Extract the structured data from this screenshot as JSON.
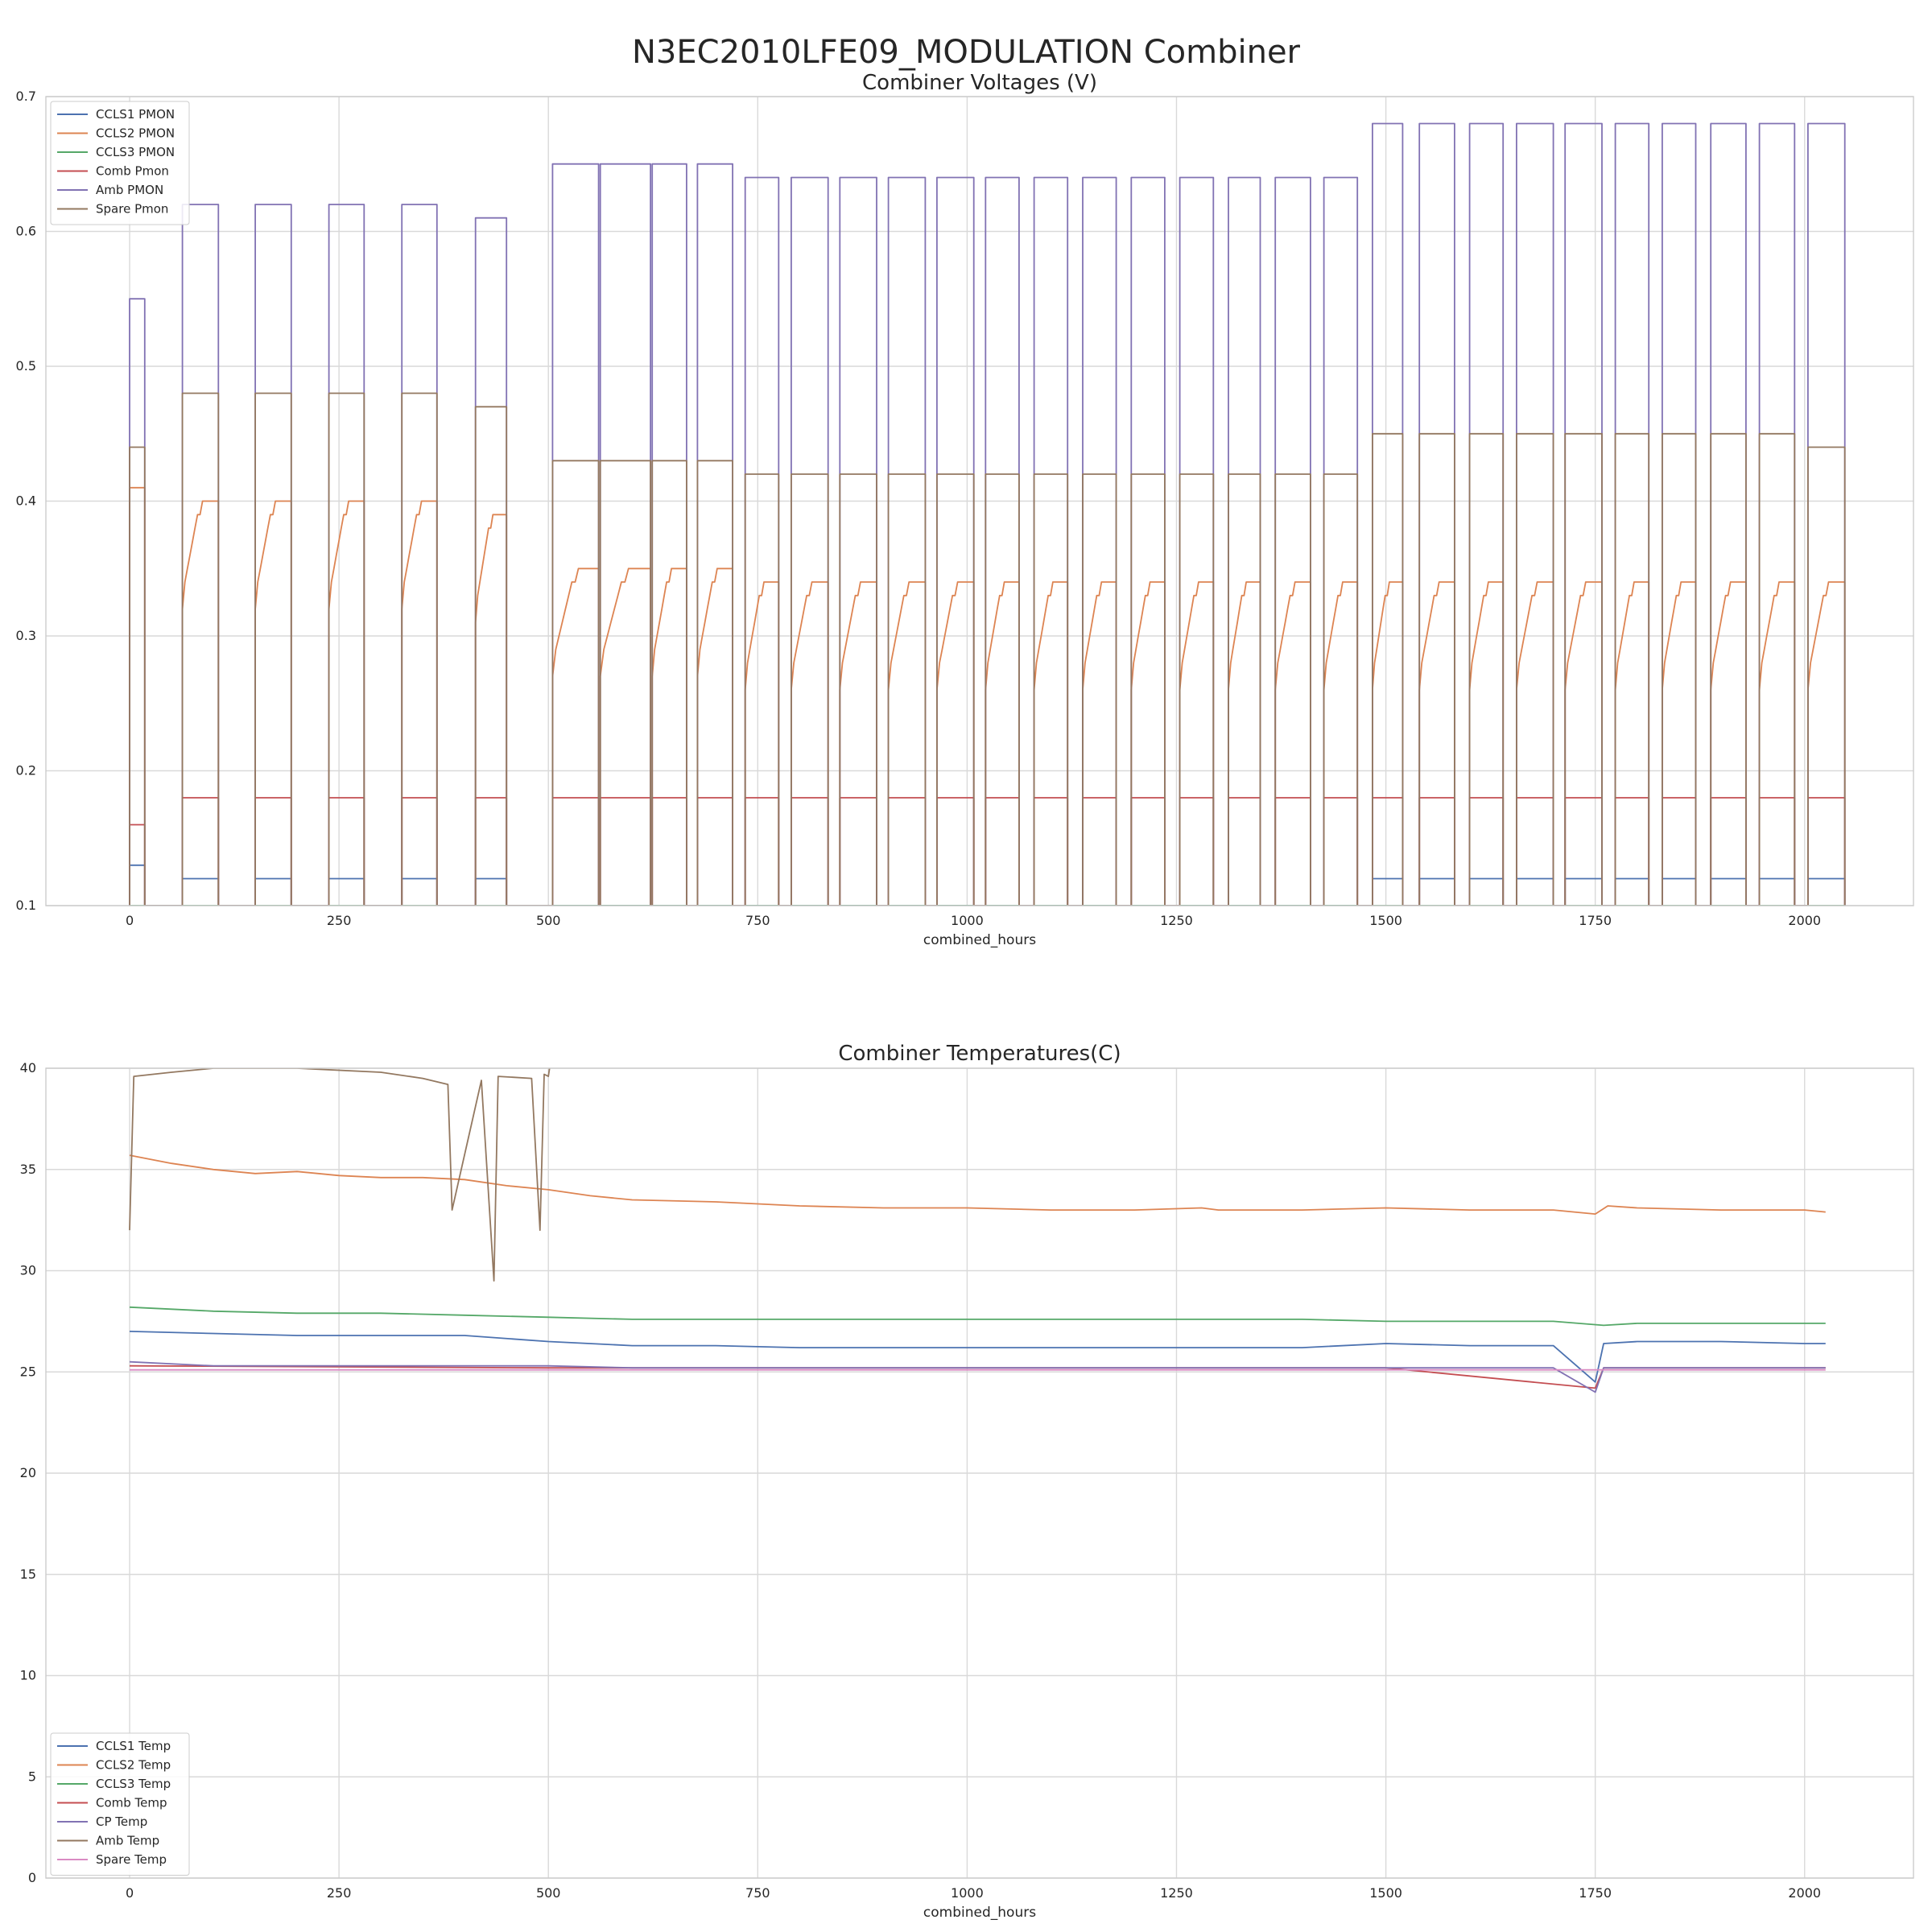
{
  "suptitle": "N3EC2010LFE09_MODULATION Combiner",
  "chart_data": [
    {
      "type": "line",
      "title": "Combiner Voltages (V)",
      "xlabel": "combined_hours",
      "ylabel": "",
      "xlim": [
        -100,
        2130
      ],
      "ylim": [
        0.1,
        0.7
      ],
      "xticks": [
        0,
        250,
        500,
        750,
        1000,
        1250,
        1500,
        1750,
        2000
      ],
      "xtick_labels": [
        "0",
        "250",
        "500",
        "750",
        "1000",
        "1250",
        "1500",
        "1750",
        "2000"
      ],
      "yticks": [
        0.1,
        0.2,
        0.3,
        0.4,
        0.5,
        0.6,
        0.7
      ],
      "ytick_labels": [
        "0.1",
        "0.2",
        "0.3",
        "0.4",
        "0.5",
        "0.6",
        "0.7"
      ],
      "grid": true,
      "legend": "upper-left",
      "on_periods": [
        [
          0,
          18
        ],
        [
          63,
          106
        ],
        [
          150,
          193
        ],
        [
          238,
          280
        ],
        [
          325,
          367
        ],
        [
          413,
          450
        ],
        [
          505,
          560
        ],
        [
          562,
          622
        ],
        [
          624,
          665
        ],
        [
          678,
          720
        ],
        [
          735,
          775
        ],
        [
          790,
          834
        ],
        [
          848,
          892
        ],
        [
          906,
          950
        ],
        [
          964,
          1008
        ],
        [
          1022,
          1062
        ],
        [
          1080,
          1120
        ],
        [
          1138,
          1178
        ],
        [
          1196,
          1236
        ],
        [
          1254,
          1294
        ],
        [
          1312,
          1350
        ],
        [
          1368,
          1410
        ],
        [
          1426,
          1466
        ],
        [
          1484,
          1520
        ],
        [
          1540,
          1582
        ],
        [
          1600,
          1640
        ],
        [
          1656,
          1700
        ],
        [
          1714,
          1758
        ],
        [
          1774,
          1814
        ],
        [
          1830,
          1870
        ],
        [
          1888,
          1930
        ],
        [
          1946,
          1988
        ],
        [
          2004,
          2048
        ]
      ],
      "series": [
        {
          "name": "CCLS1 PMON",
          "color": "#4c72b0",
          "on_values": [
            0.13,
            0.12,
            0.12,
            0.12,
            0.12,
            0.12,
            0.1,
            0.1,
            0.1,
            0.1,
            0.1,
            0.1,
            0.1,
            0.1,
            0.1,
            0.1,
            0.1,
            0.1,
            0.1,
            0.1,
            0.1,
            0.1,
            0.1,
            0.12,
            0.12,
            0.12,
            0.12,
            0.12,
            0.12,
            0.12,
            0.12,
            0.12,
            0.12
          ],
          "off_value": 0.1
        },
        {
          "name": "CCLS2 PMON",
          "color": "#dd8452",
          "on_values": [
            0.41,
            0.4,
            0.4,
            0.4,
            0.4,
            0.39,
            0.35,
            0.35,
            0.35,
            0.35,
            0.34,
            0.34,
            0.34,
            0.34,
            0.34,
            0.34,
            0.34,
            0.34,
            0.34,
            0.34,
            0.34,
            0.34,
            0.34,
            0.34,
            0.34,
            0.34,
            0.34,
            0.34,
            0.34,
            0.34,
            0.34,
            0.34,
            0.34
          ],
          "off_value": 0.1
        },
        {
          "name": "CCLS3 PMON",
          "color": "#55a868",
          "on_values": [
            0.1,
            0.1,
            0.1,
            0.1,
            0.1,
            0.1,
            0.1,
            0.1,
            0.1,
            0.1,
            0.1,
            0.1,
            0.1,
            0.1,
            0.1,
            0.1,
            0.1,
            0.1,
            0.1,
            0.1,
            0.1,
            0.1,
            0.1,
            0.1,
            0.1,
            0.1,
            0.1,
            0.1,
            0.1,
            0.1,
            0.1,
            0.1,
            0.1
          ],
          "off_value": 0.1
        },
        {
          "name": "Comb Pmon",
          "color": "#c44e52",
          "on_values": [
            0.16,
            0.18,
            0.18,
            0.18,
            0.18,
            0.18,
            0.18,
            0.18,
            0.18,
            0.18,
            0.18,
            0.18,
            0.18,
            0.18,
            0.18,
            0.18,
            0.18,
            0.18,
            0.18,
            0.18,
            0.18,
            0.18,
            0.18,
            0.18,
            0.18,
            0.18,
            0.18,
            0.18,
            0.18,
            0.18,
            0.18,
            0.18,
            0.18
          ],
          "off_value": 0.1
        },
        {
          "name": "Amb PMON",
          "color": "#8172b3",
          "on_values": [
            0.55,
            0.62,
            0.62,
            0.62,
            0.62,
            0.61,
            0.65,
            0.65,
            0.65,
            0.65,
            0.64,
            0.64,
            0.64,
            0.64,
            0.64,
            0.64,
            0.64,
            0.64,
            0.64,
            0.64,
            0.64,
            0.64,
            0.64,
            0.68,
            0.68,
            0.68,
            0.68,
            0.68,
            0.68,
            0.68,
            0.68,
            0.68,
            0.68
          ],
          "off_value": 0.1
        },
        {
          "name": "Spare Pmon",
          "color": "#937860",
          "on_values": [
            0.44,
            0.48,
            0.48,
            0.48,
            0.48,
            0.47,
            0.43,
            0.43,
            0.43,
            0.43,
            0.42,
            0.42,
            0.42,
            0.42,
            0.42,
            0.42,
            0.42,
            0.42,
            0.42,
            0.42,
            0.42,
            0.42,
            0.42,
            0.45,
            0.45,
            0.45,
            0.45,
            0.45,
            0.45,
            0.45,
            0.45,
            0.45,
            0.44
          ],
          "off_value": 0.1
        }
      ]
    },
    {
      "type": "line",
      "title": "Combiner Temperatures(C)",
      "xlabel": "combined_hours",
      "ylabel": "",
      "xlim": [
        -100,
        2130
      ],
      "ylim": [
        0,
        40
      ],
      "xticks": [
        0,
        250,
        500,
        750,
        1000,
        1250,
        1500,
        1750,
        2000
      ],
      "xtick_labels": [
        "0",
        "250",
        "500",
        "750",
        "1000",
        "1250",
        "1500",
        "1750",
        "2000"
      ],
      "yticks": [
        0,
        5,
        10,
        15,
        20,
        25,
        30,
        35,
        40
      ],
      "ytick_labels": [
        "0",
        "5",
        "10",
        "15",
        "20",
        "25",
        "30",
        "35",
        "40"
      ],
      "grid": true,
      "legend": "lower-left",
      "series": [
        {
          "name": "CCLS1 Temp",
          "color": "#4c72b0",
          "x": [
            0,
            100,
            200,
            300,
            400,
            500,
            600,
            700,
            800,
            900,
            1000,
            1100,
            1200,
            1300,
            1400,
            1500,
            1600,
            1700,
            1750,
            1760,
            1800,
            1900,
            2000,
            2025
          ],
          "y": [
            27.0,
            26.9,
            26.8,
            26.8,
            26.8,
            26.5,
            26.3,
            26.3,
            26.2,
            26.2,
            26.2,
            26.2,
            26.2,
            26.2,
            26.2,
            26.4,
            26.3,
            26.3,
            24.5,
            26.4,
            26.5,
            26.5,
            26.4,
            26.4
          ]
        },
        {
          "name": "CCLS2 Temp",
          "color": "#dd8452",
          "x": [
            0,
            50,
            100,
            150,
            200,
            250,
            300,
            350,
            400,
            450,
            500,
            550,
            600,
            700,
            800,
            900,
            1000,
            1100,
            1200,
            1280,
            1300,
            1400,
            1500,
            1600,
            1700,
            1750,
            1765,
            1800,
            1900,
            2000,
            2025
          ],
          "y": [
            35.7,
            35.3,
            35.0,
            34.8,
            34.9,
            34.7,
            34.6,
            34.6,
            34.5,
            34.2,
            34.0,
            33.7,
            33.5,
            33.4,
            33.2,
            33.1,
            33.1,
            33.0,
            33.0,
            33.1,
            33.0,
            33.0,
            33.1,
            33.0,
            33.0,
            32.8,
            33.2,
            33.1,
            33.0,
            33.0,
            32.9
          ]
        },
        {
          "name": "CCLS3 Temp",
          "color": "#55a868",
          "x": [
            0,
            100,
            200,
            300,
            400,
            500,
            600,
            700,
            800,
            900,
            1000,
            1100,
            1200,
            1280,
            1300,
            1400,
            1500,
            1600,
            1700,
            1760,
            1800,
            1900,
            2000,
            2025
          ],
          "y": [
            28.2,
            28.0,
            27.9,
            27.9,
            27.8,
            27.7,
            27.6,
            27.6,
            27.6,
            27.6,
            27.6,
            27.6,
            27.6,
            27.6,
            27.6,
            27.6,
            27.5,
            27.5,
            27.5,
            27.3,
            27.4,
            27.4,
            27.4,
            27.4
          ]
        },
        {
          "name": "Comb Temp",
          "color": "#c44e52",
          "x": [
            0,
            500,
            1000,
            1500,
            1750,
            1760,
            2000,
            2025
          ],
          "y": [
            25.3,
            25.2,
            25.2,
            25.2,
            24.2,
            25.2,
            25.2,
            25.2
          ]
        },
        {
          "name": "CP Temp",
          "color": "#8172b3",
          "x": [
            0,
            100,
            200,
            300,
            400,
            500,
            600,
            700,
            800,
            900,
            1000,
            1100,
            1200,
            1300,
            1400,
            1500,
            1600,
            1700,
            1750,
            1760,
            1800,
            1900,
            2000,
            2025
          ],
          "y": [
            25.5,
            25.3,
            25.3,
            25.3,
            25.3,
            25.3,
            25.2,
            25.2,
            25.2,
            25.2,
            25.2,
            25.2,
            25.2,
            25.2,
            25.2,
            25.2,
            25.2,
            25.2,
            24.0,
            25.2,
            25.2,
            25.2,
            25.2,
            25.2
          ]
        },
        {
          "name": "Amb Temp",
          "color": "#937860",
          "x": [
            0,
            5,
            50,
            100,
            200,
            300,
            350,
            380,
            385,
            420,
            435,
            440,
            480,
            490,
            495,
            500,
            505
          ],
          "y": [
            32.0,
            39.6,
            39.8,
            40.0,
            40.0,
            39.8,
            39.5,
            39.2,
            33.0,
            39.4,
            29.5,
            39.6,
            39.5,
            32.0,
            39.7,
            39.6,
            41.0
          ]
        },
        {
          "name": "Spare Temp",
          "color": "#da8bc3",
          "x": [
            0,
            500,
            1000,
            1500,
            2000,
            2025
          ],
          "y": [
            25.1,
            25.1,
            25.1,
            25.1,
            25.1,
            25.1
          ]
        }
      ]
    }
  ]
}
